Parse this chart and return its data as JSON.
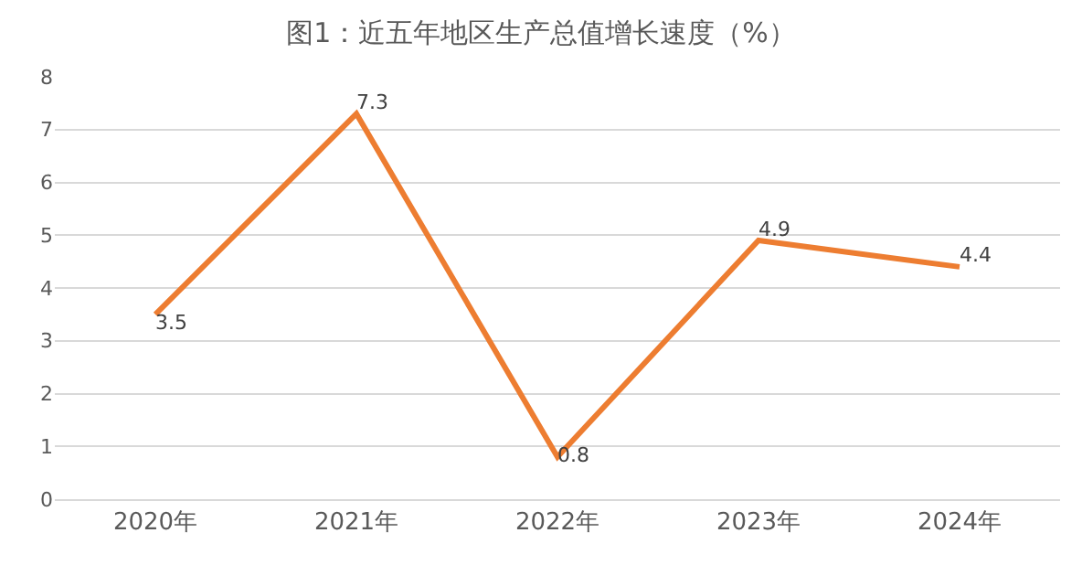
{
  "chart_data": {
    "type": "line",
    "title": "图1：近五年地区生产总值增长速度（%）",
    "categories": [
      "2020年",
      "2021年",
      "2022年",
      "2023年",
      "2024年"
    ],
    "values": [
      3.5,
      7.3,
      0.8,
      4.9,
      4.4
    ],
    "color": "#ed7d31",
    "ylim": [
      0,
      8
    ],
    "yticks": [
      0,
      1,
      2,
      3,
      4,
      5,
      6,
      7,
      8
    ],
    "grid": "y",
    "data_labels": true,
    "marker": "none",
    "line_style": "solid"
  }
}
